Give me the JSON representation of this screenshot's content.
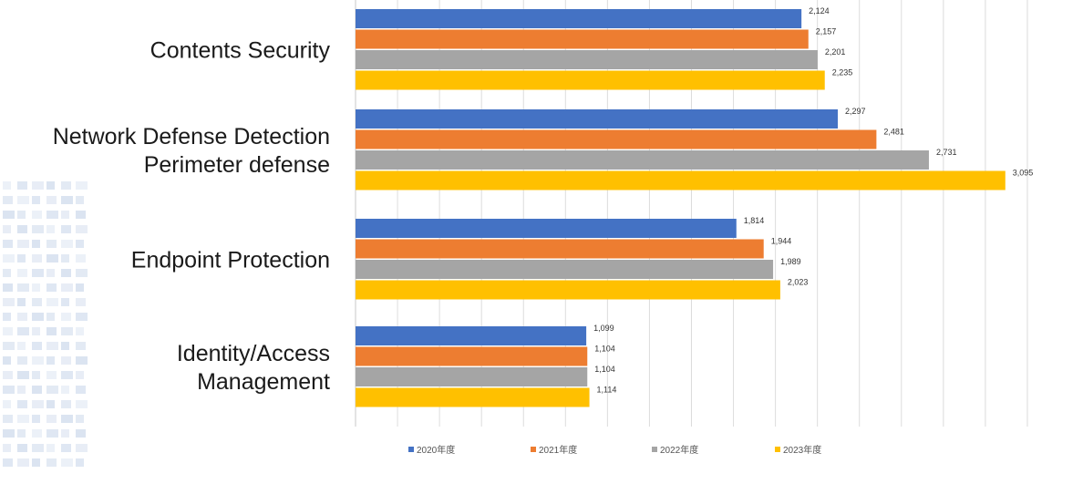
{
  "chart_data": {
    "type": "bar",
    "orientation": "horizontal",
    "categories": [
      [
        "Contents Security"
      ],
      [
        "Network Defense Detection",
        "Perimeter defense"
      ],
      [
        "Endpoint Protection"
      ],
      [
        "Identity/Access",
        "Management"
      ]
    ],
    "series": [
      {
        "name": "2020年度",
        "color": "#4472C4",
        "values": [
          2124,
          2297,
          1814,
          1099
        ]
      },
      {
        "name": "2021年度",
        "color": "#ED7D31",
        "values": [
          2157,
          2481,
          1944,
          1104
        ]
      },
      {
        "name": "2022年度",
        "color": "#A5A5A5",
        "values": [
          2201,
          2731,
          1989,
          1104
        ]
      },
      {
        "name": "2023年度",
        "color": "#FFC000",
        "values": [
          2235,
          3095,
          2023,
          1114
        ]
      }
    ],
    "value_labels": [
      [
        "2,124",
        "2,157",
        "2,201",
        "2,235"
      ],
      [
        "2,297",
        "2,481",
        "2,731",
        "3,095"
      ],
      [
        "1,814",
        "1,944",
        "1,989",
        "2,023"
      ],
      [
        "1,099",
        "1,104",
        "1,104",
        "1,114"
      ]
    ],
    "xlim": [
      0,
      3300
    ],
    "grid": true,
    "legend_position": "bottom"
  },
  "decor": {
    "left_panel_color": "#c9d6ea"
  }
}
